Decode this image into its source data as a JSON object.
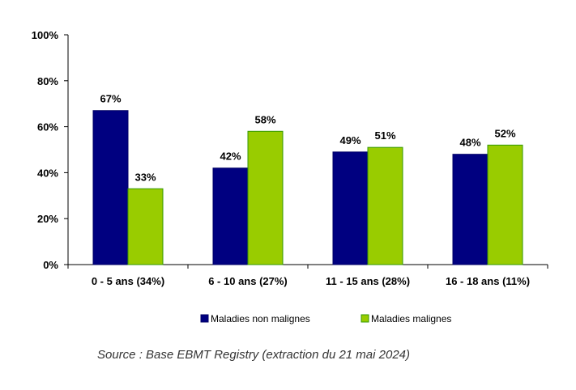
{
  "chart_data": {
    "type": "bar",
    "categories": [
      "0 - 5 ans (34%)",
      "6 - 10 ans (27%)",
      "11 - 15 ans (28%)",
      "16 - 18 ans (11%)"
    ],
    "series": [
      {
        "name": "Maladies non malignes",
        "values": [
          67,
          42,
          49,
          48
        ],
        "labels": [
          "67%",
          "42%",
          "49%",
          "48%"
        ],
        "color": "#000080"
      },
      {
        "name": "Maladies malignes",
        "values": [
          33,
          58,
          51,
          52
        ],
        "labels": [
          "33%",
          "58%",
          "51%",
          "52%"
        ],
        "color": "#99CC00"
      }
    ],
    "ylim": [
      0,
      100
    ],
    "y_ticks": [
      {
        "value": 0,
        "label": "0%"
      },
      {
        "value": 20,
        "label": "20%"
      },
      {
        "value": 40,
        "label": "40%"
      },
      {
        "value": 60,
        "label": "60%"
      },
      {
        "value": 80,
        "label": "80%"
      },
      {
        "value": 100,
        "label": "100%"
      }
    ],
    "grid": false,
    "legend_position": "bottom",
    "bar_outline_colors": [
      "#000066",
      "#339900"
    ]
  },
  "source_note": "Source : Base EBMT Registry (extraction du 21 mai 2024)"
}
